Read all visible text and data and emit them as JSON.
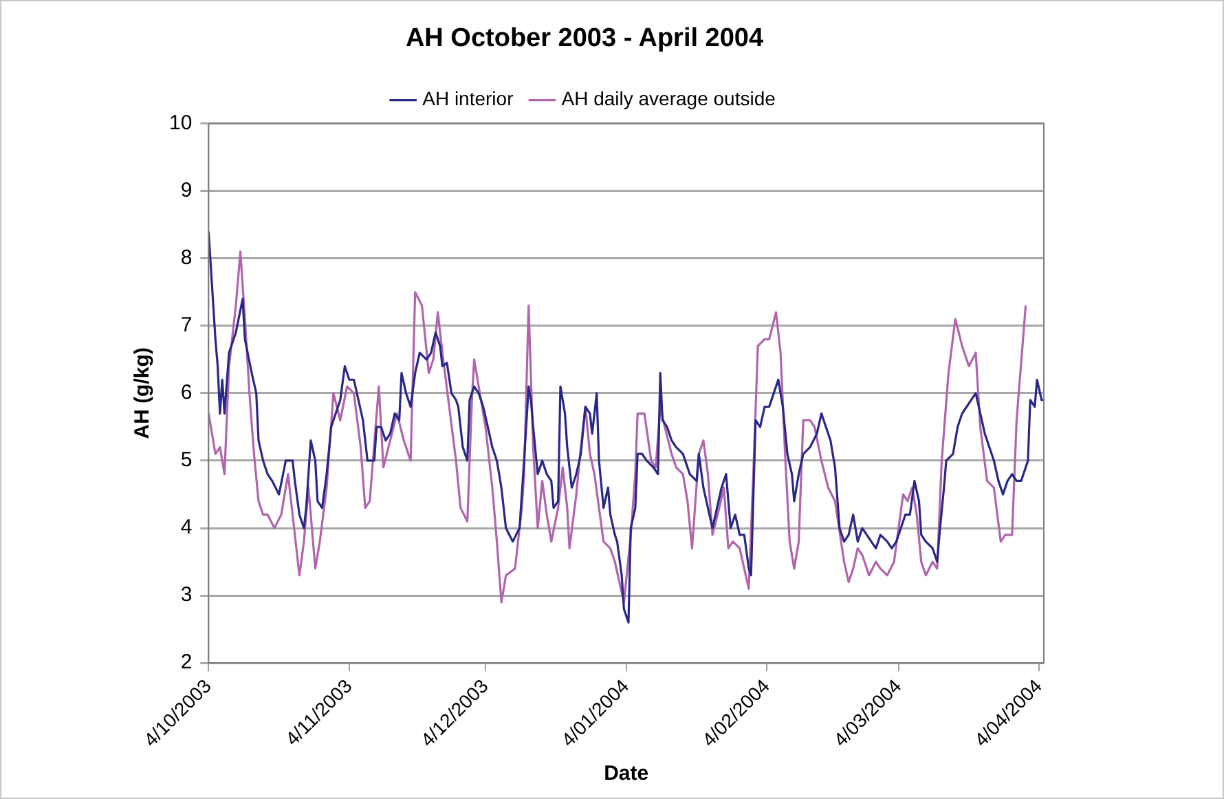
{
  "chart_data": {
    "type": "line",
    "title": "AH October 2003 - April 2004",
    "xlabel": "Date",
    "ylabel": "AH (g/kg)",
    "legend": "top",
    "grid": "y",
    "marker": "none",
    "line_style": "solid",
    "xlim": [
      "2003-10-04",
      "2004-04-05"
    ],
    "xticks": [
      {
        "value": "2003-10-04",
        "label": "4/10/2003"
      },
      {
        "value": "2003-11-04",
        "label": "4/11/2003"
      },
      {
        "value": "2003-12-04",
        "label": "4/12/2003"
      },
      {
        "value": "2004-01-04",
        "label": "4/01/2004"
      },
      {
        "value": "2004-02-04",
        "label": "4/02/2004"
      },
      {
        "value": "2004-03-04",
        "label": "4/03/2004"
      },
      {
        "value": "2004-04-04",
        "label": "4/04/2004"
      }
    ],
    "ylim": [
      2,
      10
    ],
    "yticks": [
      2,
      3,
      4,
      5,
      6,
      7,
      8,
      9,
      10
    ],
    "series": [
      {
        "name": "AH interior",
        "color": "#2a2886",
        "x": [
          "2003-10-04",
          "2003-10-05T12:00",
          "2003-10-06",
          "2003-10-06T12:00",
          "2003-10-07",
          "2003-10-07T12:00",
          "2003-10-08T12:00",
          "2003-10-09T12:00",
          "2003-10-10",
          "2003-10-11T12:00",
          "2003-10-12",
          "2003-10-13T12:00",
          "2003-10-14T12:00",
          "2003-10-15",
          "2003-10-16",
          "2003-10-17",
          "2003-10-18",
          "2003-10-19T12:00",
          "2003-10-21",
          "2003-10-22T12:00",
          "2003-10-23",
          "2003-10-24",
          "2003-10-25",
          "2003-10-25T12:00",
          "2003-10-26T12:00",
          "2003-10-27T12:00",
          "2003-10-28",
          "2003-10-29",
          "2003-10-30",
          "2003-10-31",
          "2003-11-01",
          "2003-11-02",
          "2003-11-03",
          "2003-11-04",
          "2003-11-05",
          "2003-11-06",
          "2003-11-07",
          "2003-11-08",
          "2003-11-09T12:00",
          "2003-11-10",
          "2003-11-11",
          "2003-11-12",
          "2003-11-13",
          "2003-11-14",
          "2003-11-15",
          "2003-11-15T12:00",
          "2003-11-16T12:00",
          "2003-11-17T12:00",
          "2003-11-18T12:00",
          "2003-11-19T12:00",
          "2003-11-21",
          "2003-11-22",
          "2003-11-23",
          "2003-11-24",
          "2003-11-24T12:00",
          "2003-11-25T12:00",
          "2003-11-26T12:00",
          "2003-11-27T12:00",
          "2003-11-28",
          "2003-11-29",
          "2003-11-30",
          "2003-11-30T12:00",
          "2003-12-01T12:00",
          "2003-12-02T12:00",
          "2003-12-03T12:00",
          "2003-12-04T12:00",
          "2003-12-05T12:00",
          "2003-12-06T12:00",
          "2003-12-07T12:00",
          "2003-12-08T12:00",
          "2003-12-10",
          "2003-12-11T12:00",
          "2003-12-12T12:00",
          "2003-12-13T12:00",
          "2003-12-14",
          "2003-12-14T12:00",
          "2003-12-15T12:00",
          "2003-12-16T12:00",
          "2003-12-17T12:00",
          "2003-12-18T12:00",
          "2003-12-19",
          "2003-12-20",
          "2003-12-20T12:00",
          "2003-12-21T12:00",
          "2003-12-22",
          "2003-12-23",
          "2003-12-24",
          "2003-12-25",
          "2003-12-26",
          "2003-12-27",
          "2003-12-27T12:00",
          "2003-12-28T12:00",
          "2003-12-29",
          "2003-12-30",
          "2003-12-31",
          "2003-12-31T12:00",
          "2004-01-01T12:00",
          "2004-01-02",
          "2004-01-03",
          "2004-01-03T12:00",
          "2004-01-04T12:00",
          "2004-01-05",
          "2004-01-06",
          "2004-01-06T12:00",
          "2004-01-07T12:00",
          "2004-01-08T12:00",
          "2004-01-10",
          "2004-01-11",
          "2004-01-11T12:00",
          "2004-01-12",
          "2004-01-13",
          "2004-01-14",
          "2004-01-15",
          "2004-01-16T12:00",
          "2004-01-17",
          "2004-01-18",
          "2004-01-19T12:00",
          "2004-01-20",
          "2004-01-21",
          "2004-01-22",
          "2004-01-23",
          "2004-01-24",
          "2004-01-25",
          "2004-01-26",
          "2004-01-27",
          "2004-01-28",
          "2004-01-29",
          "2004-01-30",
          "2004-01-31",
          "2004-01-31T12:00",
          "2004-02-01T12:00",
          "2004-02-02T12:00",
          "2004-02-03T12:00",
          "2004-02-04T12:00",
          "2004-02-05T12:00",
          "2004-02-06T12:00",
          "2004-02-07T12:00",
          "2004-02-08T12:00",
          "2004-02-09T12:00",
          "2004-02-10",
          "2004-02-11",
          "2004-02-12",
          "2004-02-13T12:00",
          "2004-02-15",
          "2004-02-16",
          "2004-02-17",
          "2004-02-18",
          "2004-02-19",
          "2004-02-20",
          "2004-02-21",
          "2004-02-22",
          "2004-02-23",
          "2004-02-24",
          "2004-02-25",
          "2004-02-26",
          "2004-02-27",
          "2004-02-28",
          "2004-02-29",
          "2004-03-01T12:00",
          "2004-03-02T12:00",
          "2004-03-03T12:00",
          "2004-03-04T12:00",
          "2004-03-05T12:00",
          "2004-03-06T12:00",
          "2004-03-07T12:00",
          "2004-03-08T12:00",
          "2004-03-09",
          "2004-03-10",
          "2004-03-11T12:00",
          "2004-03-12T12:00",
          "2004-03-13",
          "2004-03-14",
          "2004-03-14T12:00",
          "2004-03-16",
          "2004-03-17",
          "2004-03-18",
          "2004-03-19",
          "2004-03-20",
          "2004-03-21",
          "2004-03-22",
          "2004-03-23",
          "2004-03-24",
          "2004-03-25",
          "2004-03-26",
          "2004-03-27",
          "2004-03-28",
          "2004-03-29",
          "2004-03-30",
          "2004-03-31",
          "2004-04-01T12:00",
          "2004-04-02",
          "2004-04-03",
          "2004-04-03T12:00",
          "2004-04-04T12:00",
          "2004-04-05"
        ],
        "values": [
          8.4,
          6.8,
          6.4,
          5.7,
          6.2,
          5.7,
          6.6,
          6.8,
          6.9,
          7.4,
          6.8,
          6.3,
          6.0,
          5.3,
          5.0,
          4.8,
          4.7,
          4.5,
          5.0,
          5.0,
          4.7,
          4.2,
          4.0,
          4.3,
          5.3,
          5.0,
          4.4,
          4.3,
          4.8,
          5.5,
          5.7,
          5.9,
          6.4,
          6.2,
          6.2,
          5.9,
          5.6,
          5.0,
          5.0,
          5.5,
          5.5,
          5.3,
          5.4,
          5.7,
          5.6,
          6.3,
          6.0,
          5.8,
          6.3,
          6.6,
          6.5,
          6.6,
          6.9,
          6.7,
          6.4,
          6.45,
          6.0,
          5.9,
          5.8,
          5.2,
          5.0,
          5.9,
          6.1,
          6.0,
          5.8,
          5.5,
          5.2,
          5.0,
          4.6,
          4.0,
          3.8,
          4.0,
          5.0,
          6.1,
          5.9,
          5.5,
          4.8,
          5.0,
          4.8,
          4.7,
          4.3,
          4.4,
          6.1,
          5.7,
          5.2,
          4.6,
          4.8,
          5.1,
          5.8,
          5.7,
          5.4,
          6.0,
          5.0,
          4.3,
          4.6,
          4.2,
          3.9,
          3.8,
          3.3,
          2.8,
          2.6,
          4.0,
          4.3,
          5.1,
          5.1,
          5.0,
          4.9,
          4.8,
          6.3,
          5.6,
          5.5,
          5.3,
          5.2,
          5.1,
          5.0,
          4.8,
          4.7,
          5.1,
          4.6,
          4.3,
          4.0,
          4.3,
          4.6,
          4.8,
          4.0,
          4.2,
          3.9,
          3.9,
          3.4,
          3.3,
          5.6,
          5.5,
          5.8,
          5.8,
          6.0,
          6.2,
          5.8,
          5.1,
          4.8,
          4.4,
          4.8,
          5.1,
          5.2,
          5.4,
          5.7,
          5.5,
          5.3,
          4.9,
          4.0,
          3.8,
          3.9,
          4.2,
          3.8,
          4.0,
          3.9,
          3.8,
          3.7,
          3.9,
          3.8,
          3.7,
          3.8,
          4.0,
          4.2,
          4.2,
          4.7,
          4.4,
          3.9,
          3.8,
          3.7,
          3.5,
          3.9,
          4.6,
          5.0,
          5.1,
          5.5,
          5.7,
          5.8,
          5.9,
          6.0,
          5.7,
          5.4,
          5.2,
          5.0,
          4.7,
          4.5,
          4.7,
          4.8,
          4.7,
          4.7,
          5.0,
          5.9,
          5.8,
          6.2,
          5.9,
          5.9
        ]
      },
      {
        "name": "AH daily average outside",
        "color": "#b065ad",
        "x": [
          "2003-10-04",
          "2003-10-05T12:00",
          "2003-10-06T12:00",
          "2003-10-07T12:00",
          "2003-10-08T12:00",
          "2003-10-10",
          "2003-10-11",
          "2003-10-12",
          "2003-10-13",
          "2003-10-14",
          "2003-10-15",
          "2003-10-16",
          "2003-10-17",
          "2003-10-18T12:00",
          "2003-10-20",
          "2003-10-21T12:00",
          "2003-10-22T12:00",
          "2003-10-24",
          "2003-10-25",
          "2003-10-26",
          "2003-10-27T12:00",
          "2003-10-28T12:00",
          "2003-10-30",
          "2003-10-31T12:00",
          "2003-11-02",
          "2003-11-03T12:00",
          "2003-11-05",
          "2003-11-06T12:00",
          "2003-11-07T12:00",
          "2003-11-08T12:00",
          "2003-11-10T12:00",
          "2003-11-11T12:00",
          "2003-11-13",
          "2003-11-14T12:00",
          "2003-11-16",
          "2003-11-17T12:00",
          "2003-11-18T12:00",
          "2003-11-20",
          "2003-11-21T12:00",
          "2003-11-22T12:00",
          "2003-11-23T12:00",
          "2003-11-24T12:00",
          "2003-11-26",
          "2003-11-27T12:00",
          "2003-11-28T12:00",
          "2003-11-30",
          "2003-12-01",
          "2003-12-01T12:00",
          "2003-12-03",
          "2003-12-04",
          "2003-12-05T12:00",
          "2003-12-06T12:00",
          "2003-12-07T12:00",
          "2003-12-08T12:00",
          "2003-12-10T12:00",
          "2003-12-12",
          "2003-12-12T12:00",
          "2003-12-13T12:00",
          "2003-12-14T12:00",
          "2003-12-15T12:00",
          "2003-12-16T12:00",
          "2003-12-17T12:00",
          "2003-12-18T12:00",
          "2003-12-20",
          "2003-12-21",
          "2003-12-22",
          "2003-12-22T12:00",
          "2003-12-24",
          "2003-12-25",
          "2003-12-26",
          "2003-12-27",
          "2003-12-28",
          "2003-12-29",
          "2003-12-30",
          "2003-12-31T12:00",
          "2004-01-01T12:00",
          "2004-01-02T12:00",
          "2004-01-03T12:00",
          "2004-01-05",
          "2004-01-06",
          "2004-01-06T12:00",
          "2004-01-08",
          "2004-01-09T12:00",
          "2004-01-10T12:00",
          "2004-01-11T12:00",
          "2004-01-12T12:00",
          "2004-01-14",
          "2004-01-15",
          "2004-01-16T12:00",
          "2004-01-17T12:00",
          "2004-01-18T12:00",
          "2004-01-20",
          "2004-01-21",
          "2004-01-22",
          "2004-01-23",
          "2004-01-24T12:00",
          "2004-01-25T12:00",
          "2004-01-26T12:00",
          "2004-01-27T12:00",
          "2004-01-29",
          "2004-01-30",
          "2004-01-31",
          "2004-02-01",
          "2004-02-02",
          "2004-02-03T12:00",
          "2004-02-04T12:00",
          "2004-02-06",
          "2004-02-07",
          "2004-02-08",
          "2004-02-09",
          "2004-02-10",
          "2004-02-11",
          "2004-02-12",
          "2004-02-13T12:00",
          "2004-02-14T12:00",
          "2004-02-16",
          "2004-02-17T12:00",
          "2004-02-19",
          "2004-02-21",
          "2004-02-22",
          "2004-02-23",
          "2004-02-24",
          "2004-02-25",
          "2004-02-26T12:00",
          "2004-02-28",
          "2004-02-29",
          "2004-03-01T12:00",
          "2004-03-03",
          "2004-03-04",
          "2004-03-05",
          "2004-03-06",
          "2004-03-07",
          "2004-03-08",
          "2004-03-09",
          "2004-03-10",
          "2004-03-11T12:00",
          "2004-03-12T12:00",
          "2004-03-13T12:00",
          "2004-03-15",
          "2004-03-16T12:00",
          "2004-03-18",
          "2004-03-19T12:00",
          "2004-03-21",
          "2004-03-22",
          "2004-03-23T12:00",
          "2004-03-25",
          "2004-03-26T12:00",
          "2004-03-27T12:00",
          "2004-03-29",
          "2004-03-30",
          "2004-04-01"
        ],
        "values": [
          5.7,
          5.1,
          5.2,
          4.8,
          6.4,
          7.3,
          8.1,
          7.1,
          6.0,
          5.1,
          4.4,
          4.2,
          4.2,
          4.0,
          4.2,
          4.8,
          4.2,
          3.3,
          3.8,
          4.6,
          3.4,
          3.8,
          4.6,
          6.0,
          5.6,
          6.1,
          6.0,
          5.2,
          4.3,
          4.4,
          6.1,
          4.9,
          5.3,
          5.7,
          5.3,
          5.0,
          7.5,
          7.3,
          6.3,
          6.5,
          7.2,
          6.6,
          5.8,
          5.0,
          4.3,
          4.1,
          5.9,
          6.5,
          5.9,
          5.5,
          4.6,
          3.8,
          2.9,
          3.3,
          3.4,
          4.3,
          4.8,
          7.3,
          5.2,
          4.0,
          4.7,
          4.2,
          3.8,
          4.3,
          4.9,
          4.3,
          3.7,
          4.5,
          5.2,
          5.8,
          5.1,
          4.8,
          4.3,
          3.8,
          3.7,
          3.5,
          3.2,
          2.9,
          3.9,
          4.8,
          5.7,
          5.7,
          5.0,
          4.9,
          5.8,
          5.5,
          5.1,
          4.9,
          4.8,
          4.4,
          3.7,
          5.1,
          5.3,
          4.8,
          3.9,
          4.3,
          4.6,
          3.7,
          3.8,
          3.7,
          3.4,
          3.1,
          4.8,
          6.7,
          6.8,
          6.8,
          7.2,
          6.6,
          5.1,
          3.8,
          3.4,
          3.8,
          5.6,
          5.6,
          5.5,
          5.0,
          4.6,
          4.4,
          3.5,
          3.2,
          3.4,
          3.7,
          3.6,
          3.3,
          3.5,
          3.4,
          3.3,
          3.5,
          4.0,
          4.5,
          4.4,
          4.6,
          4.2,
          3.5,
          3.3,
          3.5,
          3.4,
          5.0,
          6.3,
          7.1,
          6.7,
          6.4,
          6.6,
          5.5,
          4.7,
          4.6,
          3.8,
          3.9,
          3.9,
          5.6,
          7.3
        ]
      }
    ]
  }
}
